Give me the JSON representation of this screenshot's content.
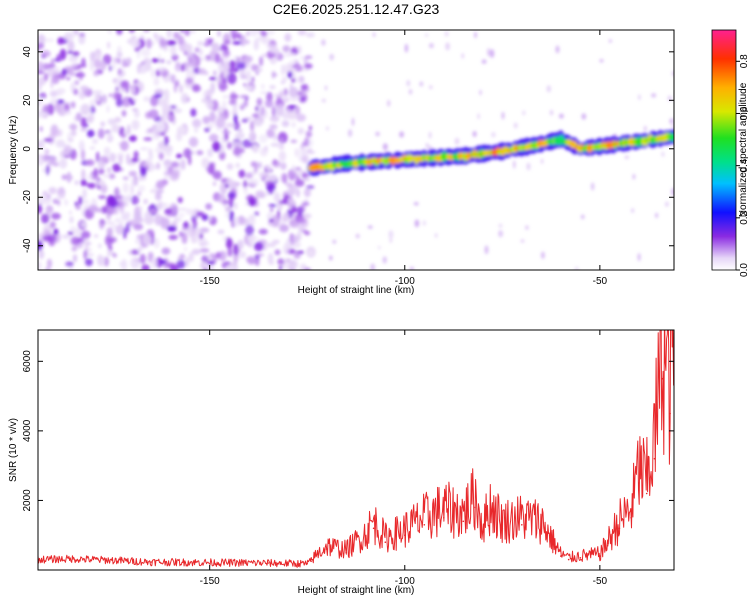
{
  "title": "C2E6.2025.251.12.47.G23",
  "chart_data": [
    {
      "type": "heatmap",
      "title": "C2E6.2025.251.12.47.G23",
      "xlabel": "Height of straight line (km)",
      "ylabel": "Frequency (Hz)",
      "xlim": [
        -194,
        -31
      ],
      "ylim": [
        -50,
        49
      ],
      "xticks": [
        -150,
        -100,
        -50
      ],
      "yticks": [
        -40,
        -20,
        0,
        20,
        40
      ],
      "colorbar": {
        "label": "Normalized spectral amplitude",
        "range": [
          0,
          0.92
        ],
        "ticks": [
          0.0,
          0.2,
          0.4,
          0.6,
          0.8
        ]
      },
      "features": {
        "noise_region_x": [
          -194,
          -124
        ],
        "signal_trace": {
          "x": [
            -124,
            -115,
            -105,
            -95,
            -85,
            -75,
            -65,
            -60,
            -55,
            -45,
            -31
          ],
          "frequency_hz": [
            -8,
            -6,
            -5,
            -4,
            -3,
            -1,
            2,
            4,
            0,
            2,
            5
          ],
          "peak_amplitude": [
            0.85,
            0.6,
            0.88,
            0.7,
            0.75,
            0.9,
            0.8,
            0.5,
            0.88,
            0.8,
            0.6
          ]
        }
      }
    },
    {
      "type": "line",
      "xlabel": "Height of straight line (km)",
      "ylabel": "SNR (10 * v/v)",
      "xlim": [
        -194,
        -31
      ],
      "ylim": [
        0,
        6900
      ],
      "xticks": [
        -150,
        -100,
        -50
      ],
      "yticks": [
        2000,
        4000,
        6000
      ],
      "series": [
        {
          "name": "SNR",
          "color": "#e8282b",
          "x": [
            -194,
            -185,
            -175,
            -165,
            -155,
            -145,
            -135,
            -125,
            -124,
            -120,
            -115,
            -110,
            -108,
            -105,
            -100,
            -95,
            -90,
            -85,
            -82,
            -80,
            -78,
            -75,
            -70,
            -65,
            -60,
            -58,
            -55,
            -50,
            -48,
            -45,
            -42,
            -40,
            -38,
            -36,
            -34,
            -32,
            -31
          ],
          "values": [
            300,
            320,
            280,
            230,
            220,
            210,
            200,
            180,
            250,
            600,
            500,
            900,
            1200,
            800,
            1000,
            1300,
            1500,
            1400,
            1800,
            1100,
            1600,
            1200,
            1300,
            1200,
            400,
            300,
            350,
            400,
            700,
            1200,
            1500,
            2500,
            2200,
            3200,
            5500,
            4500,
            6800
          ]
        }
      ]
    }
  ]
}
